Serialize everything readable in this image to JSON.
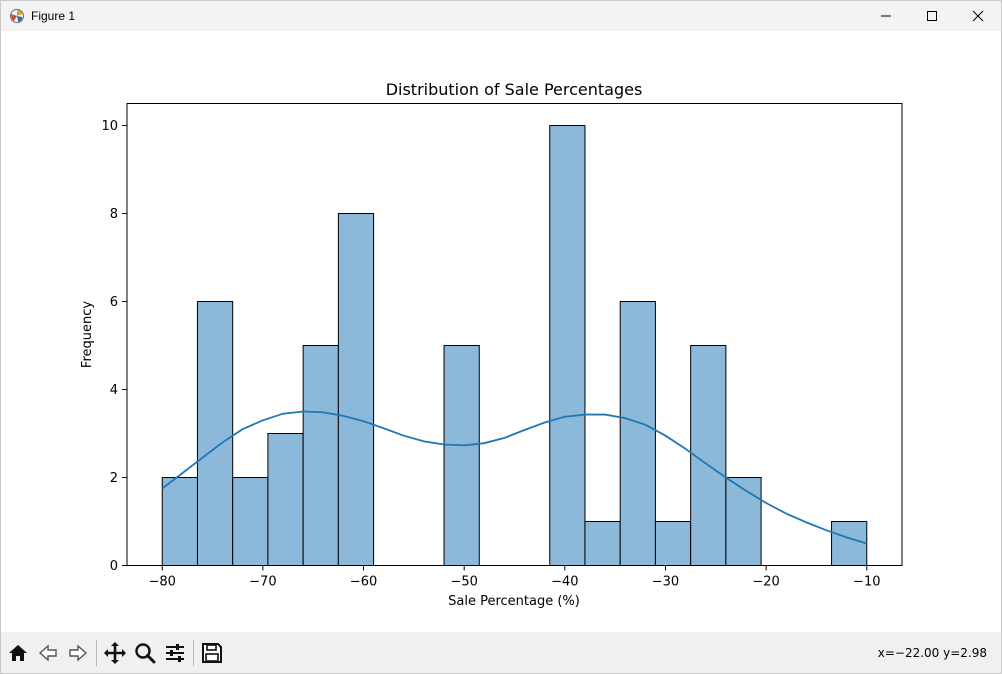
{
  "window": {
    "title": "Figure 1",
    "icons": {
      "app": "matplotlib-icon",
      "minimize": "minimize-icon",
      "maximize": "maximize-icon",
      "close": "close-icon"
    }
  },
  "toolbar": {
    "buttons": [
      "home-icon",
      "back-arrow-icon",
      "forward-arrow-icon",
      "pan-move-icon",
      "zoom-magnifier-icon",
      "configure-subplots-icon",
      "save-floppy-icon"
    ],
    "coord_readout": "x=−22.00 y=2.98"
  },
  "chart_data": {
    "type": "bar",
    "title": "Distribution of Sale Percentages",
    "xlabel": "Sale Percentage (%)",
    "ylabel": "Frequency",
    "xlim": [
      -83.5,
      -6.5
    ],
    "ylim": [
      0,
      10.5
    ],
    "xticks": [
      -80,
      -70,
      -60,
      -50,
      -40,
      -30,
      -20,
      -10
    ],
    "xtick_labels": [
      "−80",
      "−70",
      "−60",
      "−50",
      "−40",
      "−30",
      "−20",
      "−10"
    ],
    "yticks": [
      0,
      2,
      4,
      6,
      8,
      10
    ],
    "ytick_labels": [
      "0",
      "2",
      "4",
      "6",
      "8",
      "10"
    ],
    "bin_start": -80,
    "bin_width": 3.5,
    "bin_counts": [
      2,
      6,
      2,
      3,
      5,
      8,
      0,
      0,
      5,
      0,
      0,
      10,
      1,
      6,
      1,
      5,
      2,
      0,
      0,
      1
    ],
    "bar_color": "#8cb8da",
    "bar_edge_color": "#000000",
    "kde": {
      "color": "#1f77b4",
      "x": [
        -80,
        -78,
        -76,
        -74,
        -72,
        -70,
        -68,
        -66,
        -64,
        -62,
        -60,
        -58,
        -56,
        -54,
        -52,
        -50,
        -48,
        -46,
        -44,
        -42,
        -40,
        -38,
        -36,
        -34,
        -32,
        -30,
        -28,
        -26,
        -24,
        -22,
        -20,
        -18,
        -16,
        -14,
        -12,
        -10
      ],
      "y": [
        1.75,
        2.1,
        2.45,
        2.8,
        3.1,
        3.3,
        3.45,
        3.5,
        3.48,
        3.4,
        3.28,
        3.12,
        2.95,
        2.82,
        2.75,
        2.73,
        2.78,
        2.9,
        3.08,
        3.25,
        3.38,
        3.43,
        3.43,
        3.35,
        3.2,
        2.95,
        2.65,
        2.32,
        2.0,
        1.7,
        1.42,
        1.18,
        0.98,
        0.8,
        0.64,
        0.5
      ]
    }
  }
}
